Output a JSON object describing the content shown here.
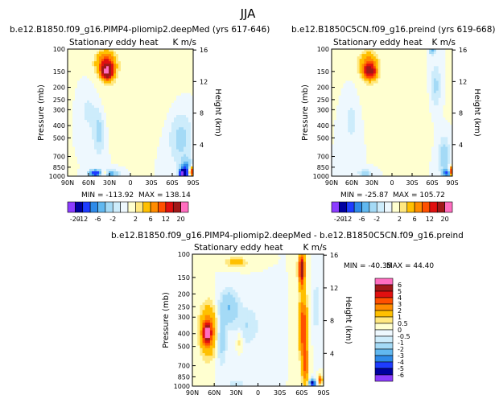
{
  "page_title": "JJA",
  "chart_data": [
    {
      "type": "contour",
      "id": "top-left",
      "title": "b.e12.B1850.f09_g16.PIMP4-pliomip2.deepMed (yrs 617-646)",
      "subtitle": "Stationary eddy heat",
      "units": "K m/s",
      "xlabel": "",
      "ylabel": "Pressure (mb)",
      "y2label": "Height (km)",
      "x_ticks": [
        "90N",
        "60N",
        "30N",
        "0",
        "30S",
        "60S",
        "90S"
      ],
      "y_ticks": [
        "100",
        "150",
        "200",
        "250",
        "300",
        "400",
        "500",
        "700",
        "850",
        "1000"
      ],
      "y2_ticks": [
        "16",
        "12",
        "8",
        "4"
      ],
      "min": -113.92,
      "max": 138.14,
      "min_label": "MIN = -113.92",
      "max_label": "MAX = 138.14",
      "features": [
        {
          "lat": 33,
          "p": 150,
          "value": 20,
          "spread_lat": 5,
          "spread_logp": 0.09
        },
        {
          "lat": 35,
          "p": 130,
          "value": 8,
          "spread_lat": 9,
          "spread_logp": 0.15
        },
        {
          "lat": 50,
          "p": 950,
          "value": -12,
          "spread_lat": 6,
          "spread_logp": 0.04
        },
        {
          "lat": 38,
          "p": 950,
          "value": 6,
          "spread_lat": 5,
          "spread_logp": 0.035
        },
        {
          "lat": 30,
          "p": 960,
          "value": -6,
          "spread_lat": 8,
          "spread_logp": 0.05
        },
        {
          "lat": -75,
          "p": 950,
          "value": -20,
          "spread_lat": 3,
          "spread_logp": 0.05
        },
        {
          "lat": -80,
          "p": 900,
          "value": -8,
          "spread_lat": 5,
          "spread_logp": 0.12
        },
        {
          "lat": -87,
          "p": 920,
          "value": 12,
          "spread_lat": 2,
          "spread_logp": 0.06
        },
        {
          "lat": -72,
          "p": 500,
          "value": -2.5,
          "spread_lat": 12,
          "spread_logp": 0.35
        },
        {
          "lat": 45,
          "p": 450,
          "value": -2.5,
          "spread_lat": 6,
          "spread_logp": 0.3
        },
        {
          "lat": 60,
          "p": 300,
          "value": -1.5,
          "spread_lat": 10,
          "spread_logp": 0.3
        },
        {
          "lat": 0,
          "p": 250,
          "value": 1,
          "spread_lat": 40,
          "spread_logp": 0.4
        }
      ]
    },
    {
      "type": "contour",
      "id": "top-right",
      "title": "b.e12.B1850C5CN.f09_g16.preind (yrs 619-668)",
      "subtitle": "Stationary eddy heat",
      "units": "K m/s",
      "xlabel": "",
      "ylabel": "Pressure (mb)",
      "y2label": "Height (km)",
      "x_ticks": [
        "90N",
        "60N",
        "30N",
        "0",
        "30S",
        "60S",
        "90S"
      ],
      "y_ticks": [
        "100",
        "150",
        "200",
        "250",
        "300",
        "400",
        "500",
        "700",
        "850",
        "1000"
      ],
      "y2_ticks": [
        "16",
        "12",
        "8",
        "4"
      ],
      "min": -25.87,
      "max": 105.72,
      "min_label": "MIN = -25.87",
      "max_label": "MAX = 105.72",
      "features": [
        {
          "lat": 33,
          "p": 150,
          "value": 12,
          "spread_lat": 6,
          "spread_logp": 0.09
        },
        {
          "lat": 35,
          "p": 130,
          "value": 5,
          "spread_lat": 9,
          "spread_logp": 0.15
        },
        {
          "lat": -60,
          "p": 100,
          "value": -6,
          "spread_lat": 3,
          "spread_logp": 0.06
        },
        {
          "lat": -65,
          "p": 200,
          "value": -2.5,
          "spread_lat": 6,
          "spread_logp": 0.3
        },
        {
          "lat": -78,
          "p": 700,
          "value": -3,
          "spread_lat": 6,
          "spread_logp": 0.25
        },
        {
          "lat": -82,
          "p": 950,
          "value": -8,
          "spread_lat": 4,
          "spread_logp": 0.05
        },
        {
          "lat": -88,
          "p": 920,
          "value": 10,
          "spread_lat": 2,
          "spread_logp": 0.06
        },
        {
          "lat": 40,
          "p": 950,
          "value": -3,
          "spread_lat": 7,
          "spread_logp": 0.05
        },
        {
          "lat": 60,
          "p": 350,
          "value": -1.5,
          "spread_lat": 10,
          "spread_logp": 0.35
        },
        {
          "lat": 0,
          "p": 250,
          "value": 1,
          "spread_lat": 40,
          "spread_logp": 0.4
        }
      ]
    },
    {
      "type": "contour",
      "id": "bottom-difference",
      "title": "b.e12.B1850.f09_g16.PIMP4-pliomip2.deepMed - b.e12.B1850C5CN.f09_g16.preind",
      "subtitle": "Stationary eddy heat",
      "units": "K m/s",
      "xlabel": "",
      "ylabel": "Pressure (mb)",
      "y2label": "Height (km)",
      "x_ticks": [
        "90N",
        "60N",
        "30N",
        "0",
        "30S",
        "60S",
        "90S"
      ],
      "y_ticks": [
        "100",
        "150",
        "200",
        "250",
        "300",
        "400",
        "500",
        "700",
        "850",
        "1000"
      ],
      "y2_ticks": [
        "16",
        "12",
        "8",
        "4"
      ],
      "min": -40.35,
      "max": 44.4,
      "min_label": "MIN = -40.35",
      "max_label": "MAX = 44.40",
      "features": [
        {
          "lat": 70,
          "p": 400,
          "value": 5,
          "spread_lat": 4,
          "spread_logp": 0.12
        },
        {
          "lat": 68,
          "p": 380,
          "value": 3,
          "spread_lat": 8,
          "spread_logp": 0.3
        },
        {
          "lat": -60,
          "p": 130,
          "value": 6,
          "spread_lat": 3,
          "spread_logp": 0.2
        },
        {
          "lat": -62,
          "p": 350,
          "value": 4,
          "spread_lat": 4,
          "spread_logp": 0.35
        },
        {
          "lat": -65,
          "p": 700,
          "value": 3,
          "spread_lat": 3,
          "spread_logp": 0.25
        },
        {
          "lat": 30,
          "p": 115,
          "value": 1.5,
          "spread_lat": 10,
          "spread_logp": 0.06
        },
        {
          "lat": 40,
          "p": 250,
          "value": -2,
          "spread_lat": 9,
          "spread_logp": 0.2
        },
        {
          "lat": 15,
          "p": 350,
          "value": -1,
          "spread_lat": 12,
          "spread_logp": 0.25
        },
        {
          "lat": 50,
          "p": 450,
          "value": -1.5,
          "spread_lat": 5,
          "spread_logp": 0.3
        },
        {
          "lat": 25,
          "p": 450,
          "value": 1,
          "spread_lat": 3,
          "spread_logp": 0.12
        },
        {
          "lat": -75,
          "p": 950,
          "value": -6,
          "spread_lat": 3,
          "spread_logp": 0.05
        },
        {
          "lat": -85,
          "p": 900,
          "value": 4,
          "spread_lat": 2,
          "spread_logp": 0.05
        },
        {
          "lat": 30,
          "p": 950,
          "value": -1,
          "spread_lat": 8,
          "spread_logp": 0.05
        },
        {
          "lat": -80,
          "p": 250,
          "value": -1,
          "spread_lat": 4,
          "spread_logp": 0.3
        }
      ]
    }
  ],
  "colorbar_top": {
    "labels": [
      "-20",
      "-12",
      "-6",
      "-2",
      "2",
      "6",
      "12",
      "20"
    ],
    "colors": [
      "#8c3cff",
      "#0000a0",
      "#1e3cff",
      "#2e8ae8",
      "#61b8f0",
      "#a4daf6",
      "#cdecfb",
      "#eef8fe",
      "#ffffd0",
      "#ffe880",
      "#ffc000",
      "#ff8c00",
      "#ff5000",
      "#e01010",
      "#a01818",
      "#ff6ec0"
    ]
  },
  "colorbar_bottom": {
    "labels": [
      "6",
      "5",
      "4",
      "3",
      "2",
      "1",
      "0.5",
      "0",
      "-0.5",
      "-1",
      "-2",
      "-3",
      "-4",
      "-5",
      "-6"
    ],
    "colors": [
      "#ff6ec0",
      "#a01818",
      "#e01010",
      "#ff5000",
      "#ff8c00",
      "#ffc000",
      "#ffe880",
      "#ffffd0",
      "#eef8fe",
      "#cdecfb",
      "#a4daf6",
      "#61b8f0",
      "#2e8ae8",
      "#1e3cff",
      "#0000a0",
      "#8c3cff"
    ]
  }
}
